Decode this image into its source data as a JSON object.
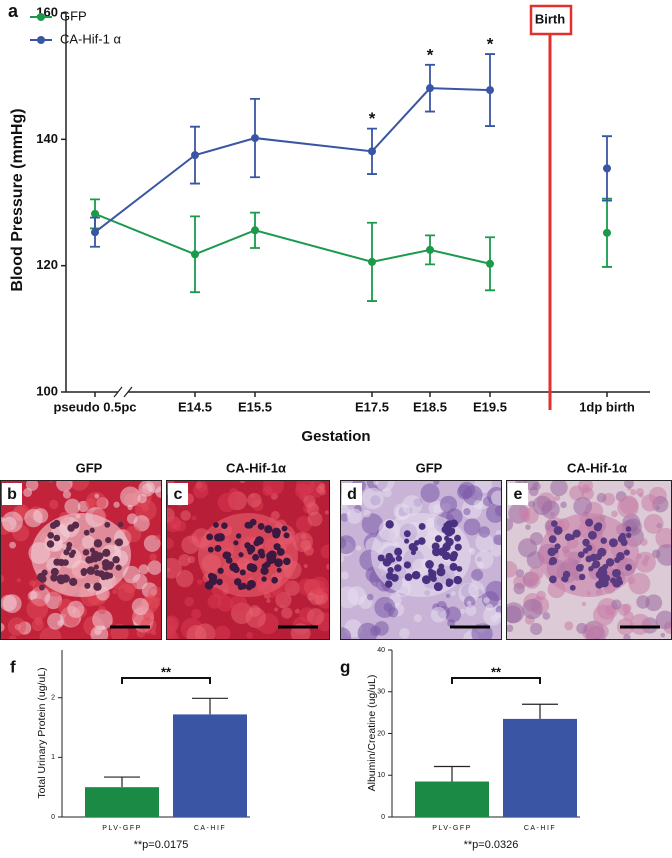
{
  "chart_data": [
    {
      "type": "line",
      "label": "a",
      "x_label": "Gestation",
      "y_label": "Blood Pressure (mmHg)",
      "categories": [
        "pseudo 0.5pc",
        "E14.5",
        "E15.5",
        "E17.5",
        "E18.5",
        "E19.5",
        "1dp birth"
      ],
      "ylim": [
        100,
        160
      ],
      "yticks": [
        100,
        120,
        140,
        160
      ],
      "legend": "upper left",
      "event": {
        "label": "Birth",
        "color": "#e2302c"
      },
      "series": [
        {
          "name": "GFP",
          "color": "#1a9a4a",
          "values": [
            128.2,
            121.8,
            125.6,
            120.6,
            122.5,
            120.3,
            125.2
          ],
          "errors": [
            2.3,
            6,
            2.8,
            6.2,
            2.3,
            4.2,
            5.4
          ],
          "significance": [
            null,
            null,
            null,
            null,
            null,
            null,
            null
          ]
        },
        {
          "name": "CA-Hif-1 α",
          "color": "#3a55a4",
          "values": [
            125.3,
            137.5,
            140.2,
            138.1,
            148.1,
            147.8,
            135.4
          ],
          "errors": [
            2.3,
            4.5,
            6.2,
            3.6,
            3.7,
            5.7,
            5.1
          ],
          "significance": [
            null,
            null,
            null,
            "*",
            "*",
            "*",
            null
          ]
        }
      ]
    },
    {
      "type": "bar",
      "label": "f",
      "y_label": "Total Urinary Protein (ug/uL)",
      "categories": [
        "PLV-GFP",
        "CA-HIF"
      ],
      "values": [
        0.5,
        1.72
      ],
      "errors": [
        0.17,
        0.27
      ],
      "colors": [
        "#1a8a45",
        "#3a55a4"
      ],
      "ylim": [
        0,
        2.8
      ],
      "yticks": [
        0,
        1,
        2
      ],
      "significance": "**",
      "note": "**p=0.0175"
    },
    {
      "type": "bar",
      "label": "g",
      "y_label": "Albumin/Creatine (ug/uL)",
      "categories": [
        "PLV-GFP",
        "CA-HIF"
      ],
      "values": [
        8.5,
        23.5
      ],
      "errors": [
        3.6,
        3.5
      ],
      "colors": [
        "#1a8a45",
        "#3a55a4"
      ],
      "ylim": [
        0,
        40
      ],
      "yticks": [
        0,
        10,
        20,
        30,
        40
      ],
      "significance": "**",
      "note": "**p=0.0326"
    }
  ],
  "images": [
    {
      "label": "b",
      "title": "GFP"
    },
    {
      "label": "c",
      "title": "CA-Hif-1α"
    },
    {
      "label": "d",
      "title": "GFP"
    },
    {
      "label": "e",
      "title": "CA-Hif-1α"
    }
  ]
}
